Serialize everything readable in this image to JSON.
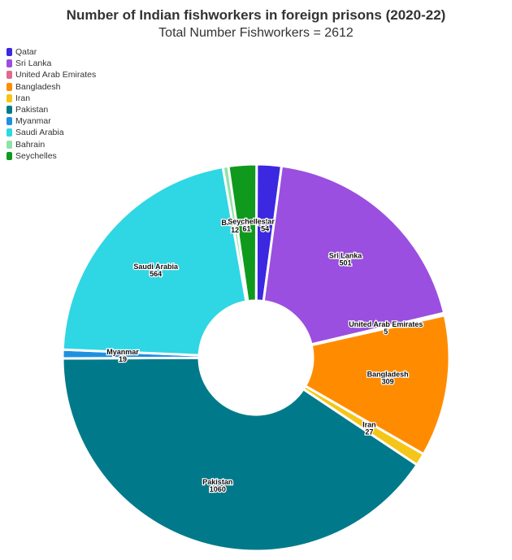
{
  "chart_data": {
    "type": "pie",
    "title": "Number of Indian fishworkers in foreign prisons (2020-22)",
    "subtitle": "Total Number Fishworkers = 2612",
    "legend_position": "top-left",
    "slices": [
      {
        "label": "Qatar",
        "value": 54,
        "color": "#3b28e0"
      },
      {
        "label": "Sri Lanka",
        "value": 501,
        "color": "#9a4fe0"
      },
      {
        "label": "United Arab Emirates",
        "value": 5,
        "color": "#e06a8f"
      },
      {
        "label": "Bangladesh",
        "value": 309,
        "color": "#ff8c00"
      },
      {
        "label": "Iran",
        "value": 27,
        "color": "#f5c518"
      },
      {
        "label": "Pakistan",
        "value": 1060,
        "color": "#007a8a"
      },
      {
        "label": "Myanmar",
        "value": 19,
        "color": "#1e90e0"
      },
      {
        "label": "Saudi Arabia",
        "value": 564,
        "color": "#2fd6e3"
      },
      {
        "label": "Bahrain",
        "value": 12,
        "color": "#8fe3a5"
      },
      {
        "label": "Seychelles",
        "value": 61,
        "color": "#0f9a1e"
      }
    ]
  }
}
